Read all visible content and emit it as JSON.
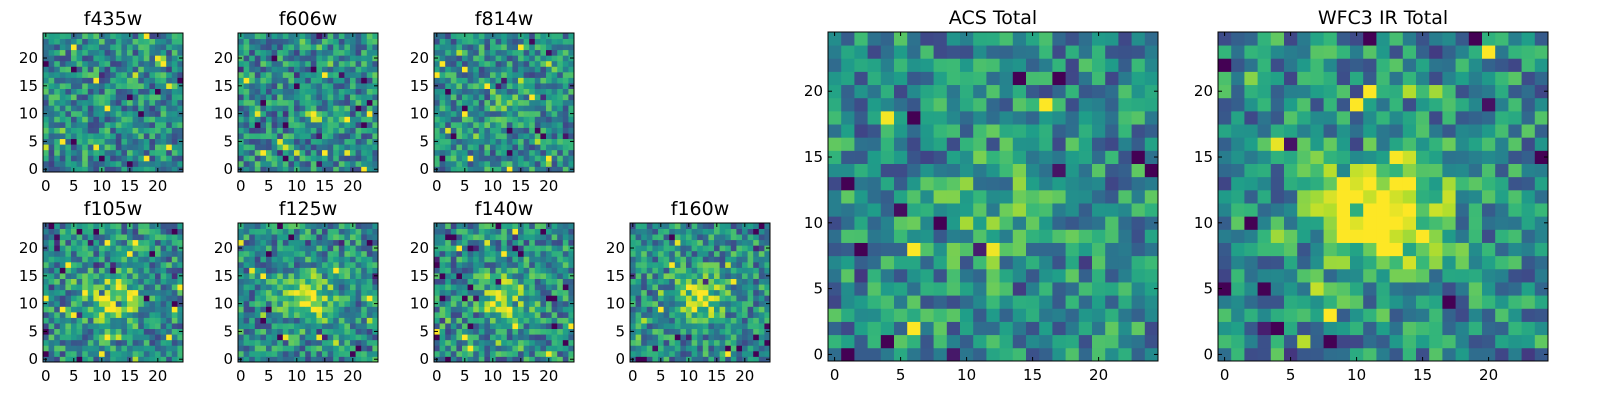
{
  "chart_data": [
    {
      "type": "heatmap",
      "title": "f435w",
      "x_ticks": [
        "0",
        "5",
        "10",
        "15",
        "20"
      ],
      "y_ticks": [
        "0",
        "5",
        "10",
        "15",
        "20"
      ],
      "grid": [
        25,
        25
      ],
      "xlim": [
        -0.5,
        24.5
      ],
      "ylim": [
        -0.5,
        24.5
      ],
      "colormap": "viridis",
      "grid_lines": false,
      "seed": 11,
      "blob": 0.0
    },
    {
      "type": "heatmap",
      "title": "f606w",
      "x_ticks": [
        "0",
        "5",
        "10",
        "15",
        "20"
      ],
      "y_ticks": [
        "0",
        "5",
        "10",
        "15",
        "20"
      ],
      "grid": [
        25,
        25
      ],
      "xlim": [
        -0.5,
        24.5
      ],
      "ylim": [
        -0.5,
        24.5
      ],
      "colormap": "viridis",
      "grid_lines": false,
      "seed": 23,
      "blob": 0.0
    },
    {
      "type": "heatmap",
      "title": "f814w",
      "x_ticks": [
        "0",
        "5",
        "10",
        "15",
        "20"
      ],
      "y_ticks": [
        "0",
        "5",
        "10",
        "15",
        "20"
      ],
      "grid": [
        25,
        25
      ],
      "xlim": [
        -0.5,
        24.5
      ],
      "ylim": [
        -0.5,
        24.5
      ],
      "colormap": "viridis",
      "grid_lines": false,
      "seed": 37,
      "blob": 0.1
    },
    {
      "type": "heatmap",
      "title": "f105w",
      "x_ticks": [
        "0",
        "5",
        "10",
        "15",
        "20"
      ],
      "y_ticks": [
        "0",
        "5",
        "10",
        "15",
        "20"
      ],
      "grid": [
        25,
        25
      ],
      "xlim": [
        -0.5,
        24.5
      ],
      "ylim": [
        -0.5,
        24.5
      ],
      "colormap": "viridis",
      "grid_lines": false,
      "seed": 41,
      "blob": 0.45
    },
    {
      "type": "heatmap",
      "title": "f125w",
      "x_ticks": [
        "0",
        "5",
        "10",
        "15",
        "20"
      ],
      "y_ticks": [
        "0",
        "5",
        "10",
        "15",
        "20"
      ],
      "grid": [
        25,
        25
      ],
      "xlim": [
        -0.5,
        24.5
      ],
      "ylim": [
        -0.5,
        24.5
      ],
      "colormap": "viridis",
      "grid_lines": false,
      "seed": 53,
      "blob": 0.45
    },
    {
      "type": "heatmap",
      "title": "f140w",
      "x_ticks": [
        "0",
        "5",
        "10",
        "15",
        "20"
      ],
      "y_ticks": [
        "0",
        "5",
        "10",
        "15",
        "20"
      ],
      "grid": [
        25,
        25
      ],
      "xlim": [
        -0.5,
        24.5
      ],
      "ylim": [
        -0.5,
        24.5
      ],
      "colormap": "viridis",
      "grid_lines": false,
      "seed": 67,
      "blob": 0.4
    },
    {
      "type": "heatmap",
      "title": "f160w",
      "x_ticks": [
        "0",
        "5",
        "10",
        "15",
        "20"
      ],
      "y_ticks": [
        "0",
        "5",
        "10",
        "15",
        "20"
      ],
      "grid": [
        25,
        25
      ],
      "xlim": [
        -0.5,
        24.5
      ],
      "ylim": [
        -0.5,
        24.5
      ],
      "colormap": "viridis",
      "grid_lines": false,
      "seed": 79,
      "blob": 0.4
    },
    {
      "type": "heatmap",
      "title": "ACS Total",
      "x_ticks": [
        "0",
        "5",
        "10",
        "15",
        "20"
      ],
      "y_ticks": [
        "0",
        "5",
        "10",
        "15",
        "20"
      ],
      "grid": [
        25,
        25
      ],
      "xlim": [
        -0.5,
        24.5
      ],
      "ylim": [
        -0.5,
        24.5
      ],
      "colormap": "viridis",
      "grid_lines": false,
      "seed": 97,
      "blob": 0.15
    },
    {
      "type": "heatmap",
      "title": "WFC3 IR Total",
      "x_ticks": [
        "0",
        "5",
        "10",
        "15",
        "20"
      ],
      "y_ticks": [
        "0",
        "5",
        "10",
        "15",
        "20"
      ],
      "grid": [
        25,
        25
      ],
      "xlim": [
        -0.5,
        24.5
      ],
      "ylim": [
        -0.5,
        24.5
      ],
      "colormap": "viridis",
      "grid_lines": false,
      "seed": 113,
      "blob": 0.7
    }
  ]
}
